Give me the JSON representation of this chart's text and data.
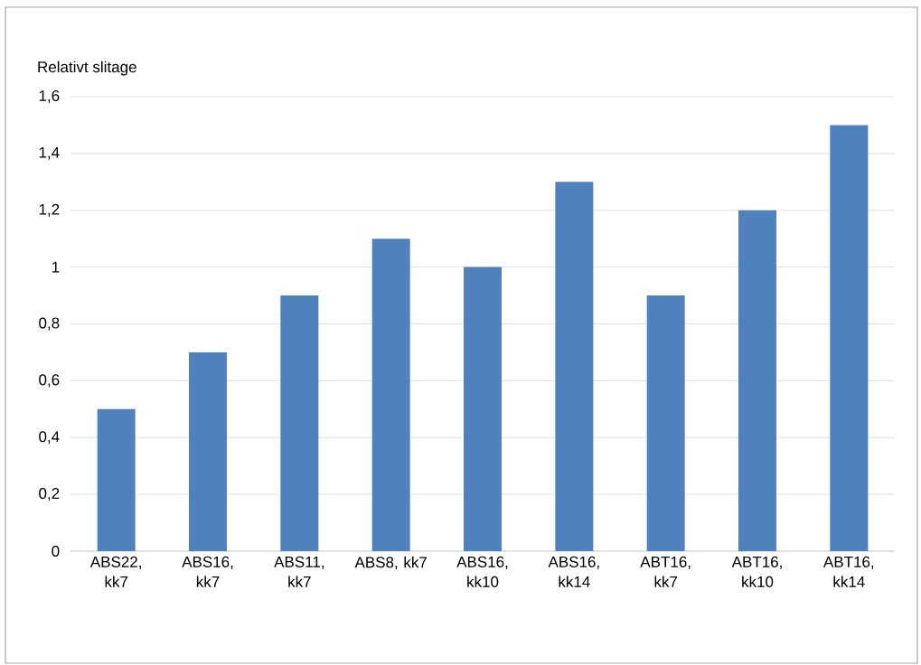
{
  "chart_data": {
    "type": "bar",
    "ylabel": "Relativt slitage",
    "categories": [
      "ABS22, kk7",
      "ABS16, kk7",
      "ABS11, kk7",
      "ABS8, kk7",
      "ABS16, kk10",
      "ABS16, kk14",
      "ABT16, kk7",
      "ABT16, kk10",
      "ABT16, kk14"
    ],
    "values": [
      0.5,
      0.7,
      0.9,
      1.1,
      1.0,
      1.3,
      0.9,
      1.2,
      1.5
    ],
    "color": "#4f81bd",
    "ylim": [
      0,
      1.6
    ],
    "yticks": [
      0,
      {
        "value": 0.2,
        "label": "0,2"
      },
      {
        "value": 0.4,
        "label": "0,4"
      },
      {
        "value": 0.6,
        "label": "0,6"
      },
      {
        "value": 0.8,
        "label": "0,8"
      },
      1,
      {
        "value": 1.2,
        "label": "1,2"
      },
      {
        "value": 1.4,
        "label": "1,4"
      },
      {
        "value": 1.6,
        "label": "1,6"
      }
    ],
    "grid": "y"
  }
}
